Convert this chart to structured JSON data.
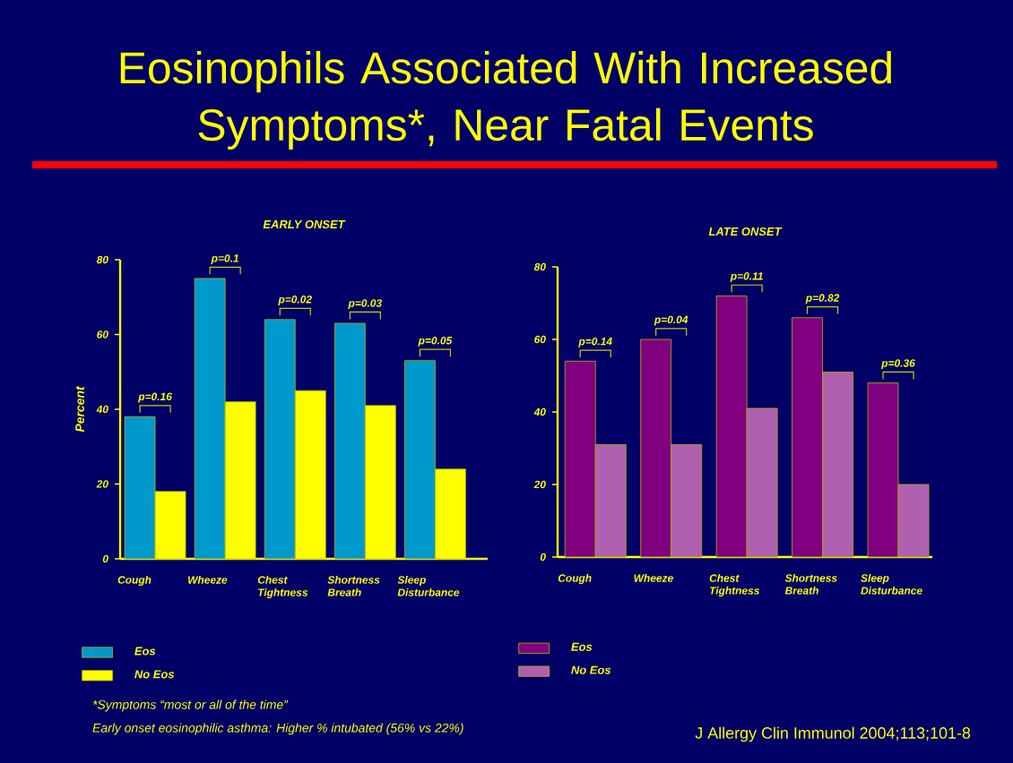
{
  "chart_data": [
    {
      "type": "bar",
      "title": "EARLY ONSET",
      "ylabel": "Percent",
      "categories": [
        "Cough",
        "Wheeze",
        "Chest Tightness",
        "Shortness Breath",
        "Sleep Disturbance"
      ],
      "series": [
        {
          "name": "Eos",
          "color": "#0099cc",
          "values": [
            38,
            75,
            64,
            63,
            53
          ]
        },
        {
          "name": "No Eos",
          "color": "#ffff00",
          "values": [
            18,
            42,
            45,
            41,
            24
          ]
        }
      ],
      "ylim": [
        0,
        80
      ],
      "yticks": [
        0,
        20,
        40,
        60,
        80
      ],
      "grid": false,
      "legend": "bottom left",
      "annotations": [
        "p=0.16",
        "p=0.1",
        "p=0.02",
        "p=0.03",
        "p=0.05",
        "Eosinophils  Associated With Increased Symptoms*, Near Fatal Events",
        "*Symptoms “most or all of the time”",
        "Early onset eosinophilic asthma: Higher % intubated (56% vs 22%)"
      ]
    },
    {
      "type": "bar",
      "title": "LATE ONSET",
      "categories": [
        "Cough",
        "Wheeze",
        "Chest Tightness",
        "Shortness Breath",
        "Sleep Disturbance"
      ],
      "series": [
        {
          "name": "Eos",
          "color": "#800080",
          "values": [
            54,
            60,
            72,
            66,
            48
          ]
        },
        {
          "name": "No Eos",
          "color": "#b060b0",
          "values": [
            31,
            31,
            41,
            51,
            20
          ]
        }
      ],
      "ylim": [
        0,
        80
      ],
      "yticks": [
        0,
        20,
        40,
        60,
        80
      ],
      "grid": false,
      "legend": "bottom left",
      "annotations": [
        "p=0.14",
        "p=0.04",
        "p=0.11",
        "p=0.82",
        "p=0.36",
        "J Allergy Clin Immunol 2004;113;101-8"
      ]
    }
  ]
}
